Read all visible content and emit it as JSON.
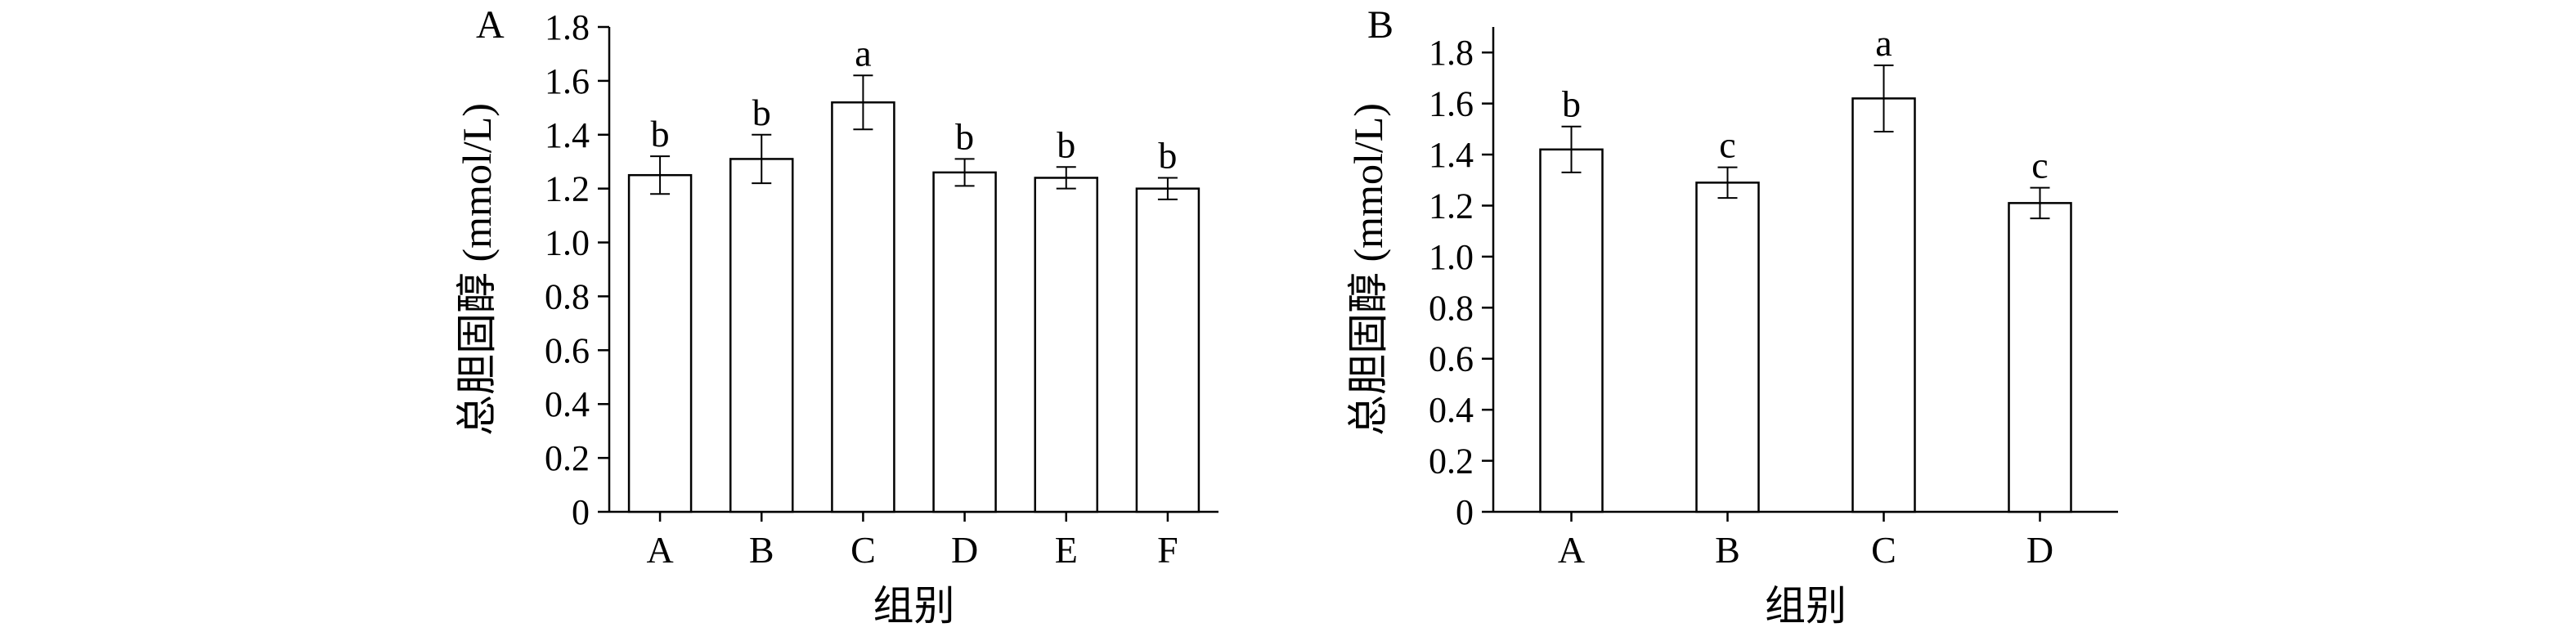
{
  "chart_data": [
    {
      "type": "bar",
      "panel_label": "A",
      "categories": [
        "A",
        "B",
        "C",
        "D",
        "E",
        "F"
      ],
      "values": [
        1.25,
        1.31,
        1.52,
        1.26,
        1.24,
        1.2
      ],
      "errors": [
        0.07,
        0.09,
        0.1,
        0.05,
        0.04,
        0.04
      ],
      "significance": [
        "b",
        "b",
        "a",
        "b",
        "b",
        "b"
      ],
      "xlabel": "组别",
      "ylabel": "总胆固醇 (mmol/L)",
      "ylim": [
        0,
        1.8
      ],
      "yticks": [
        0,
        0.2,
        0.4,
        0.6,
        0.8,
        1.0,
        1.2,
        1.4,
        1.6,
        1.8
      ],
      "ytick_labels": [
        "0",
        "0.2",
        "0.4",
        "0.6",
        "0.8",
        "1.0",
        "1.2",
        "1.4",
        "1.6",
        "1.8"
      ],
      "bar_fill": "#ffffff",
      "bar_stroke": "#000000"
    },
    {
      "type": "bar",
      "panel_label": "B",
      "categories": [
        "A",
        "B",
        "C",
        "D"
      ],
      "values": [
        1.42,
        1.29,
        1.62,
        1.21
      ],
      "errors": [
        0.09,
        0.06,
        0.13,
        0.06
      ],
      "significance": [
        "b",
        "c",
        "a",
        "c"
      ],
      "xlabel": "组别",
      "ylabel": "总胆固醇 (mmol/L)",
      "ylim": [
        0,
        1.9
      ],
      "yticks": [
        0,
        0.2,
        0.4,
        0.6,
        0.8,
        1.0,
        1.2,
        1.4,
        1.6,
        1.8
      ],
      "ytick_labels": [
        "0",
        "0.2",
        "0.4",
        "0.6",
        "0.8",
        "1.0",
        "1.2",
        "1.4",
        "1.6",
        "1.8"
      ],
      "bar_fill": "#ffffff",
      "bar_stroke": "#000000"
    }
  ]
}
